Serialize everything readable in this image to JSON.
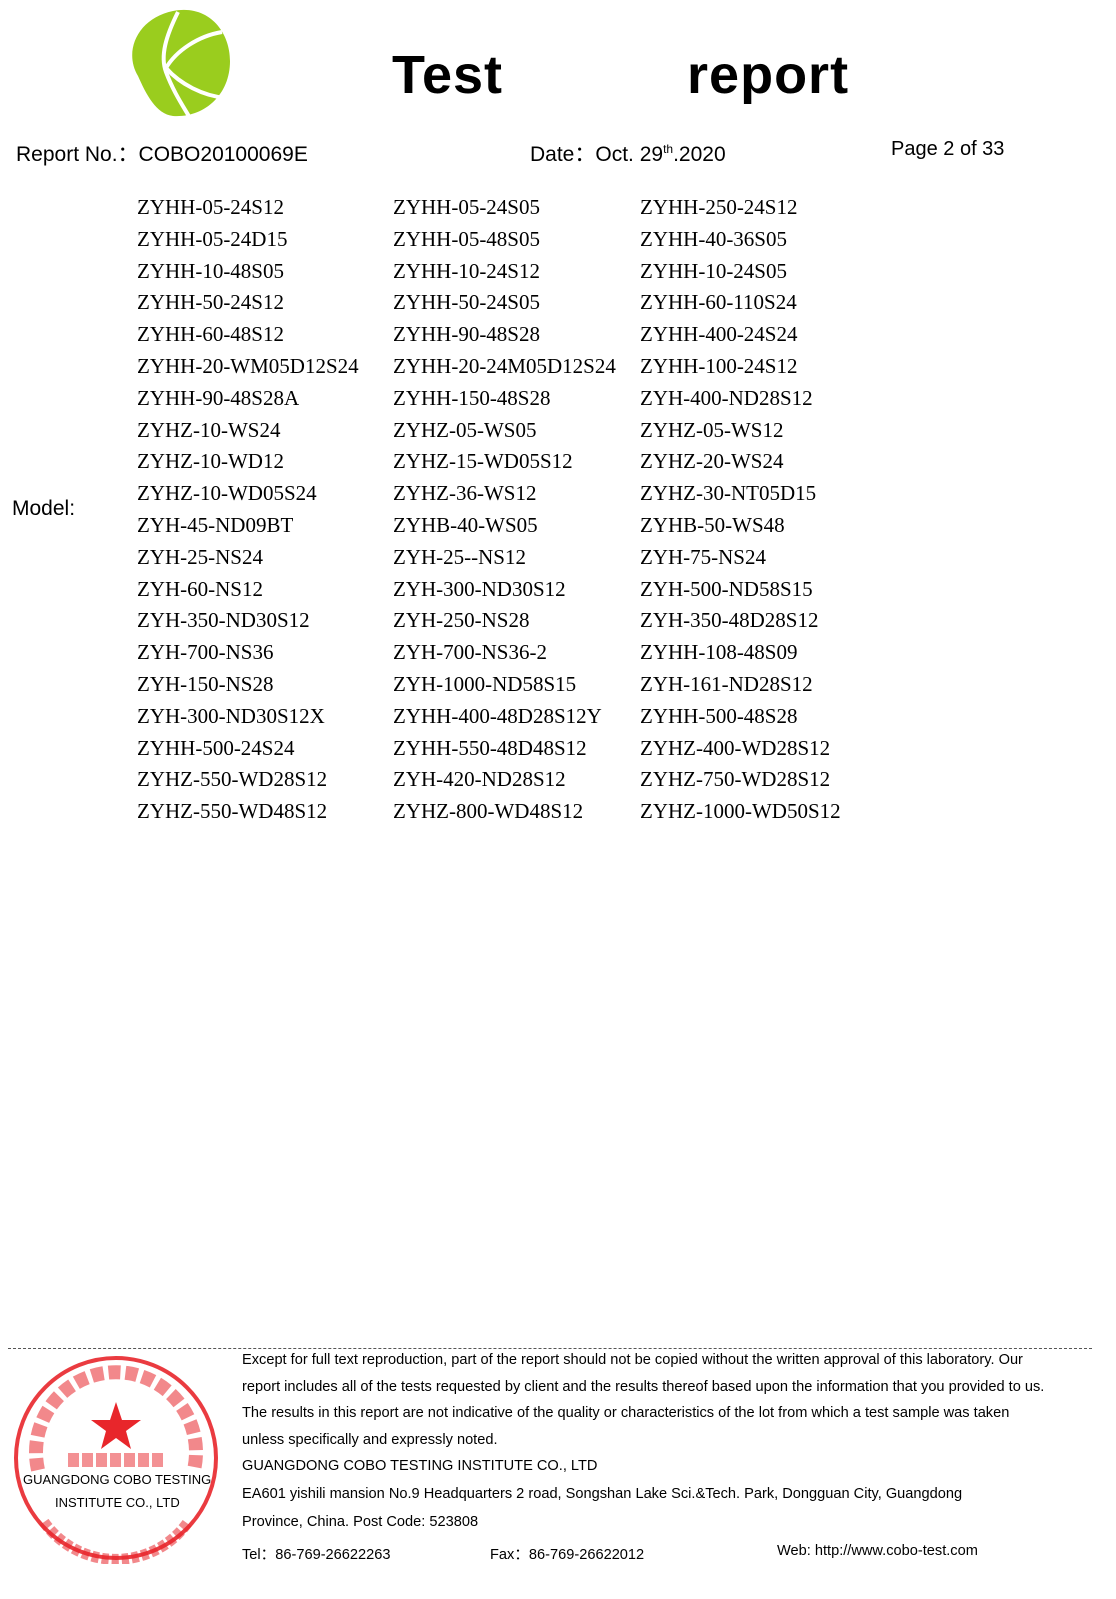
{
  "logo": {
    "name": "cobo-logo-icon",
    "color": "#9ACD1E"
  },
  "header": {
    "title": "Test    report",
    "report_no": "Report No.：COBO20100069E",
    "date_prefix": "Date：Oct. 29",
    "date_sup": "th",
    "date_suffix": ".2020",
    "page": "Page 2 of 33"
  },
  "model": {
    "label": "Model:",
    "rows": [
      [
        "ZYHH-05-24S12",
        "ZYHH-05-24S05",
        "ZYHH-250-24S12"
      ],
      [
        "ZYHH-05-24D15",
        "ZYHH-05-48S05",
        "ZYHH-40-36S05"
      ],
      [
        "ZYHH-10-48S05",
        "ZYHH-10-24S12",
        "ZYHH-10-24S05"
      ],
      [
        "ZYHH-50-24S12",
        "ZYHH-50-24S05",
        "ZYHH-60-110S24"
      ],
      [
        "ZYHH-60-48S12",
        "ZYHH-90-48S28",
        "ZYHH-400-24S24"
      ],
      [
        "ZYHH-20-WM05D12S24",
        "ZYHH-20-24M05D12S24",
        "ZYHH-100-24S12"
      ],
      [
        "ZYHH-90-48S28A",
        "ZYHH-150-48S28",
        "ZYH-400-ND28S12"
      ],
      [
        "ZYHZ-10-WS24",
        "ZYHZ-05-WS05",
        "ZYHZ-05-WS12"
      ],
      [
        "ZYHZ-10-WD12",
        "ZYHZ-15-WD05S12",
        "ZYHZ-20-WS24"
      ],
      [
        "ZYHZ-10-WD05S24",
        "ZYHZ-36-WS12",
        "ZYHZ-30-NT05D15"
      ],
      [
        "ZYH-45-ND09BT",
        "ZYHB-40-WS05",
        "ZYHB-50-WS48"
      ],
      [
        "ZYH-25-NS24",
        "ZYH-25--NS12",
        "ZYH-75-NS24"
      ],
      [
        "ZYH-60-NS12",
        "ZYH-300-ND30S12",
        "ZYH-500-ND58S15"
      ],
      [
        "ZYH-350-ND30S12",
        "ZYH-250-NS28",
        "ZYH-350-48D28S12"
      ],
      [
        "ZYH-700-NS36",
        "ZYH-700-NS36-2",
        "ZYHH-108-48S09"
      ],
      [
        "ZYH-150-NS28",
        "ZYH-1000-ND58S15",
        "ZYH-161-ND28S12"
      ],
      [
        "ZYH-300-ND30S12X",
        "ZYHH-400-48D28S12Y",
        "ZYHH-500-48S28"
      ],
      [
        "ZYHH-500-24S24",
        "ZYHH-550-48D48S12",
        "ZYHZ-400-WD28S12"
      ],
      [
        "ZYHZ-550-WD28S12",
        "ZYH-420-ND28S12",
        "ZYHZ-750-WD28S12"
      ],
      [
        "ZYHZ-550-WD48S12",
        "ZYHZ-800-WD48S12",
        "ZYHZ-1000-WD50S12"
      ]
    ]
  },
  "footer": {
    "lines": [
      "Except for full text reproduction, part of the report should not be copied without the written approval of this laboratory. Our",
      "report includes all of the tests requested by client and the results thereof based upon the information that you provided to us.",
      "The results in this report are not indicative of the quality or characteristics of the lot from which a test sample was taken",
      "unless specifically and expressly noted.",
      "GUANGDONG COBO TESTING INSTITUTE CO., LTD",
      "EA601 yishili mansion No.9 Headquarters 2 road, Songshan Lake Sci.&Tech. Park, Dongguan City, Guangdong",
      "Province, China. Post Code: 523808"
    ],
    "tel": "Tel：86-769-26622263",
    "fax": "Fax：86-769-26622012",
    "web": "Web: http://www.cobo-test.com"
  },
  "stamp": {
    "color": "#E8262B",
    "chinese_arc": "广东科博检测研究院有限公司",
    "chinese_center": "检验检测专用章",
    "english_arc": "GUANGDONG COBO TESTING INSTITUTE CO.,LTD",
    "overlay_line1": "GUANGDONG COBO TESTING",
    "overlay_line2": "INSTITUTE CO., LTD"
  }
}
